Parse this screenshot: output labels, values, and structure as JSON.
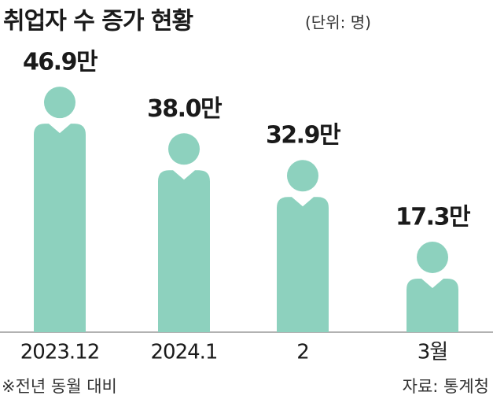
{
  "chart_data": {
    "type": "pictogram",
    "title": "취업자 수 증가 현황",
    "subtitle": "(단위: 명)",
    "categories": [
      "2023.12",
      "2024.1",
      "2",
      "3월"
    ],
    "values": [
      46.9,
      38.0,
      32.9,
      17.3
    ],
    "value_labels": [
      "46.9만",
      "38.0만",
      "32.9만",
      "17.3만"
    ],
    "color": "#8dd1be",
    "footnote": "※전년 동월 대비",
    "source": "자료: 통계청"
  }
}
